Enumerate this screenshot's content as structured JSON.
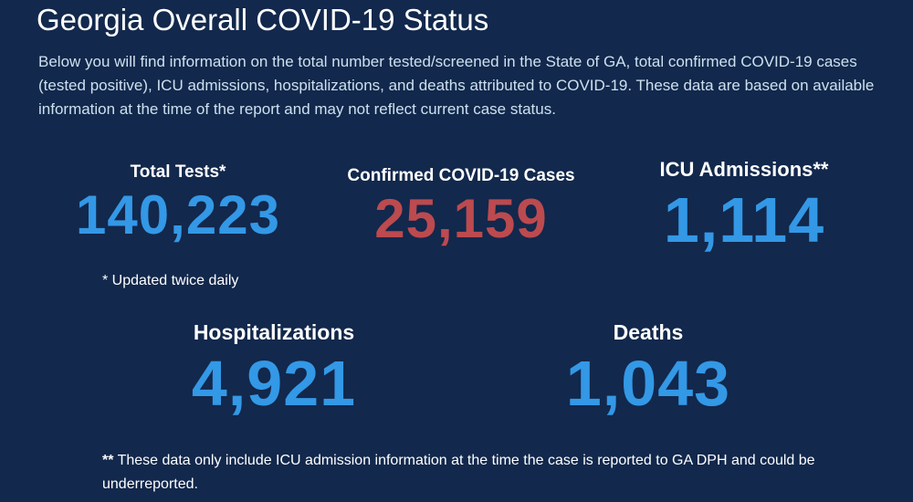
{
  "page": {
    "title": "Georgia Overall COVID-19 Status",
    "intro": "Below you will find information on the total number tested/screened in the State of GA, total confirmed COVID-19 cases (tested positive), ICU admissions, hospitalizations, and deaths attributed to COVID-19. These data are based on available information at the time of the report and may not reflect current case status."
  },
  "stats": {
    "total_tests": {
      "label": "Total Tests*",
      "value": "140,223"
    },
    "confirmed_cases": {
      "label": "Confirmed COVID-19 Cases",
      "value": "25,159"
    },
    "icu_admissions": {
      "label": "ICU Admissions**",
      "value": "1,114"
    },
    "hospitalizations": {
      "label": "Hospitalizations",
      "value": "4,921"
    },
    "deaths": {
      "label": "Deaths",
      "value": "1,043"
    }
  },
  "notes": {
    "updated": "* Updated twice daily",
    "footnote_mark": "**",
    "footnote_text": " These data only include ICU admission information at the time the case is reported to GA DPH and could be underreported."
  },
  "colors": {
    "background": "#12284c",
    "accent_blue": "#3398e6",
    "accent_red": "#bc4a4f",
    "intro_text": "#cde0ee"
  }
}
